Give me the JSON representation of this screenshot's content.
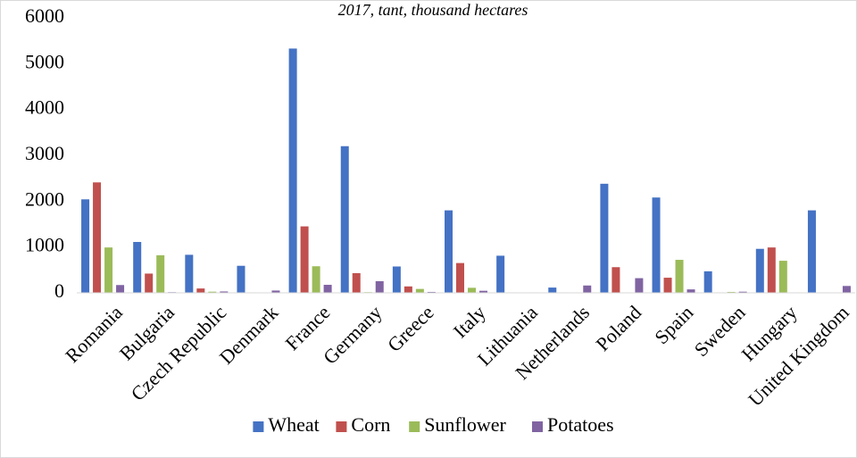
{
  "chart_data": {
    "type": "bar",
    "title": "2017, tant, thousand hectares",
    "xlabel": "",
    "ylabel": "",
    "ylim": [
      0,
      6000
    ],
    "yticks": [
      0,
      1000,
      2000,
      3000,
      4000,
      5000,
      6000
    ],
    "grid": false,
    "legend_position": "bottom",
    "categories": [
      "Romania",
      "Bulgaria",
      "Czech Republic",
      "Denmark",
      "France",
      "Germany",
      "Greece",
      "Italy",
      "Lithuania",
      "Netherlands",
      "Poland",
      "Spain",
      "Sweden",
      "Hungary",
      "United Kingdom"
    ],
    "series": [
      {
        "name": "Wheat",
        "color": "#4472C4",
        "values": [
          2040,
          1110,
          830,
          590,
          5330,
          3200,
          575,
          1800,
          810,
          115,
          2380,
          2080,
          470,
          960,
          1800
        ]
      },
      {
        "name": "Corn",
        "color": "#C0504D",
        "values": [
          2410,
          420,
          95,
          10,
          1450,
          430,
          140,
          650,
          10,
          10,
          560,
          330,
          10,
          990,
          10
        ]
      },
      {
        "name": "Sunflower",
        "color": "#9BBB59",
        "values": [
          990,
          820,
          25,
          5,
          580,
          15,
          85,
          110,
          5,
          5,
          10,
          720,
          20,
          700,
          5
        ]
      },
      {
        "name": "Potatoes",
        "color": "#8064A2",
        "values": [
          170,
          15,
          30,
          50,
          175,
          255,
          20,
          45,
          10,
          160,
          320,
          75,
          25,
          10,
          150
        ]
      }
    ]
  }
}
